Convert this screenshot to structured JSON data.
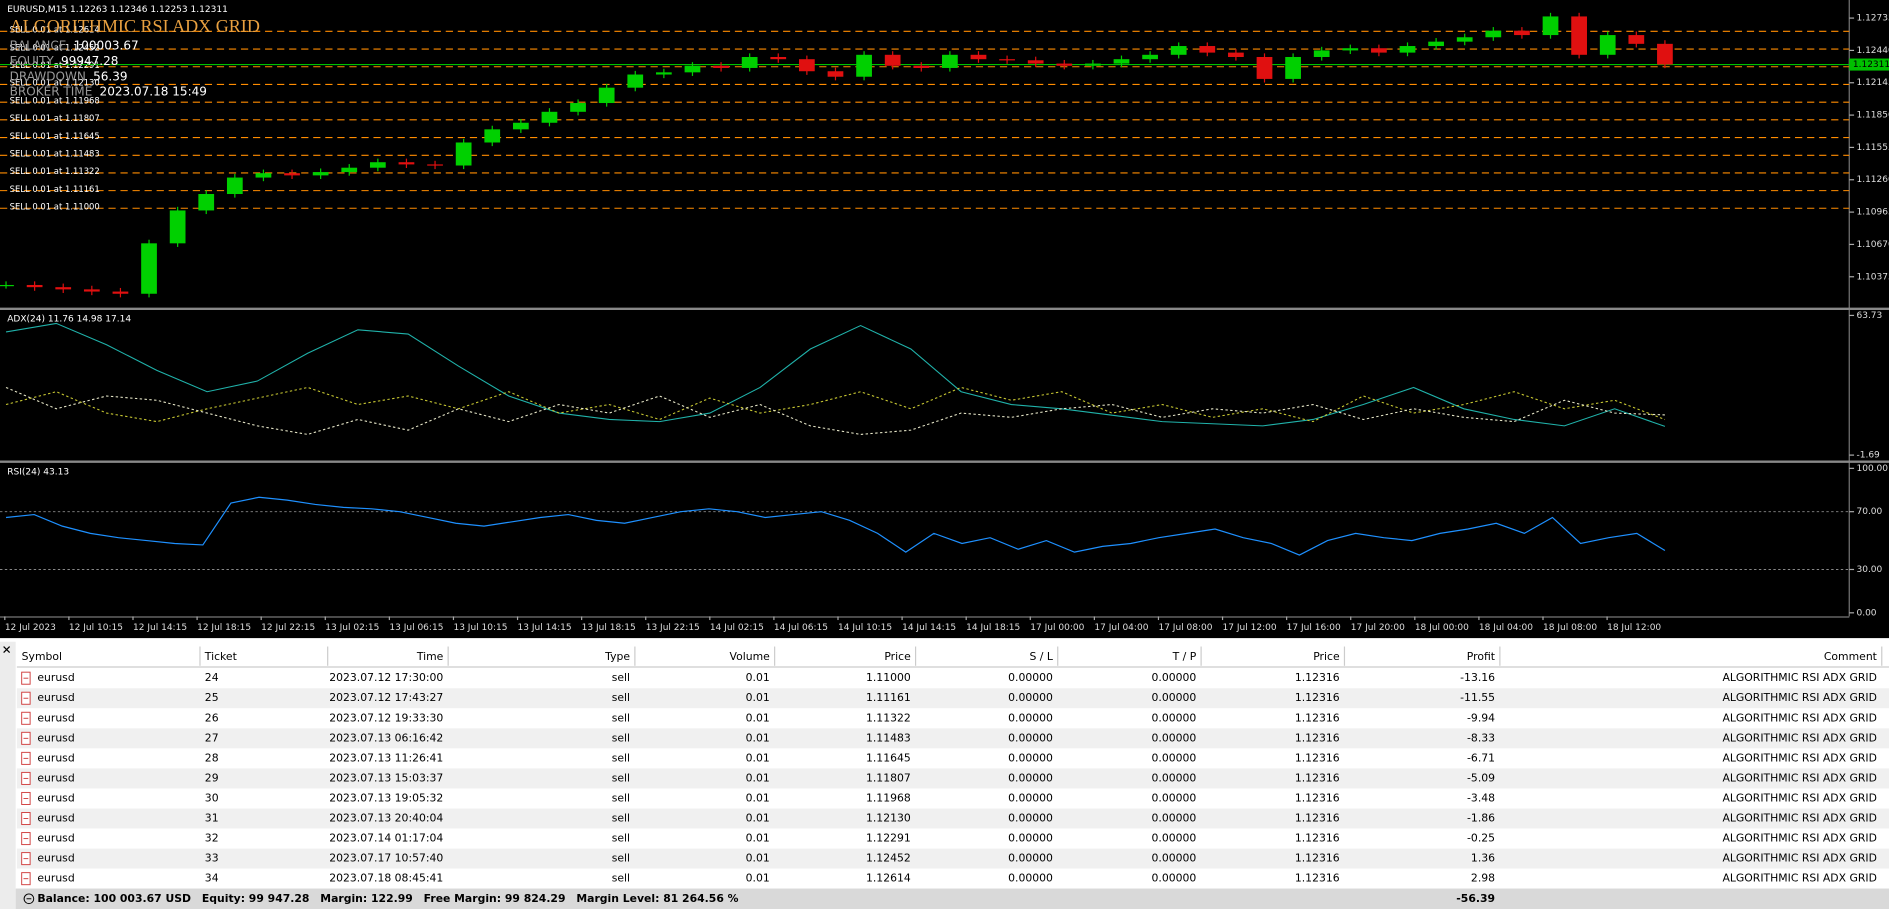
{
  "chart": {
    "header": "EURUSD,M15  1.12263 1.12346 1.12253 1.12311",
    "title": "ALGORITHMIC RSI ADX GRID",
    "overlay": [
      {
        "label": "BALANCE",
        "value": "100003.67"
      },
      {
        "label": "EQUITY",
        "value": "99947.28"
      },
      {
        "label": "DRAWDOWN",
        "value": "56.39"
      },
      {
        "label": "BROKER TIME",
        "value": "2023.07.18 15:49"
      }
    ],
    "price": {
      "ylim": [
        1.10099,
        1.12878
      ],
      "yticks": [
        1.12735,
        {
          "value": 1.1244,
          "label": "1.12440"
        },
        1.12145,
        {
          "value": 1.1185,
          "label": "1.11850"
        },
        1.11555,
        {
          "value": 1.1126,
          "label": "1.11260"
        },
        1.10965,
        {
          "value": 1.1067,
          "label": "1.10670"
        },
        1.10375
      ],
      "current": 1.12311,
      "up_color": "#00d000",
      "down_color": "#e01010",
      "values": [
        1.103,
        1.1028,
        1.1026,
        1.1024,
        1.1022,
        1.1068,
        1.1098,
        1.1113,
        1.1128,
        1.1132,
        1.113,
        1.1133,
        1.1137,
        1.1142,
        1.114,
        1.1139,
        1.116,
        1.1172,
        1.1178,
        1.1188,
        1.1196,
        1.121,
        1.1222,
        1.1224,
        1.123,
        1.1228,
        1.1238,
        1.1236,
        1.1225,
        1.122,
        1.124,
        1.123,
        1.1228,
        1.124,
        1.1236,
        1.1235,
        1.1232,
        1.123,
        1.1232,
        1.1236,
        1.124,
        1.1248,
        1.1242,
        1.1238,
        1.1218,
        1.1238,
        1.1244,
        1.1246,
        1.1242,
        1.1248,
        1.1252,
        1.1256,
        1.1262,
        1.1258,
        1.1275,
        1.124,
        1.1258,
        1.125,
        1.12311
      ]
    },
    "sell_orders": [
      {
        "text": "SELL 0.01 at 1.11000",
        "price": 1.11
      },
      {
        "text": "SELL 0.01 at 1.11161",
        "price": 1.11161
      },
      {
        "text": "SELL 0.01 at 1.11322",
        "price": 1.11322
      },
      {
        "text": "SELL 0.01 at 1.11483",
        "price": 1.11483
      },
      {
        "text": "SELL 0.01 at 1.11645",
        "price": 1.11645
      },
      {
        "text": "SELL 0.01 at 1.11807",
        "price": 1.11807
      },
      {
        "text": "SELL 0.01 at 1.11968",
        "price": 1.11968
      },
      {
        "text": "SELL 0.01 at 1.12130",
        "price": 1.1213
      },
      {
        "text": "SELL 0.01 at 1.12291",
        "price": 1.12291
      },
      {
        "text": "SELL 0.01 at 1.12452",
        "price": 1.12452
      },
      {
        "text": "SELL 0.01 at 1.12614",
        "price": 1.12614
      }
    ],
    "adx": {
      "label": "ADX(24) 11.76 14.98 17.14",
      "ylim": [
        -1.69,
        63.73
      ],
      "yticks": [
        63.73,
        -1.69
      ],
      "series": [
        {
          "color": "#20b2aa",
          "values": [
            56,
            60,
            50,
            38,
            28,
            33,
            46,
            57,
            55,
            40,
            26,
            18,
            15,
            14,
            18,
            30,
            48,
            59,
            48,
            28,
            22,
            20,
            17,
            14,
            13,
            12,
            15,
            22,
            30,
            20,
            15,
            12,
            20,
            11.76
          ]
        },
        {
          "color": "#c8c832",
          "values": [
            22,
            28,
            18,
            14,
            20,
            25,
            30,
            22,
            26,
            20,
            28,
            18,
            22,
            15,
            25,
            18,
            22,
            28,
            20,
            30,
            24,
            28,
            18,
            22,
            16,
            20,
            14,
            26,
            18,
            22,
            28,
            20,
            24,
            14.98
          ]
        },
        {
          "color": "#e6e6c8",
          "values": [
            30,
            20,
            26,
            24,
            18,
            12,
            8,
            15,
            10,
            20,
            14,
            22,
            18,
            26,
            16,
            22,
            12,
            8,
            10,
            18,
            16,
            20,
            22,
            16,
            20,
            18,
            22,
            15,
            20,
            16,
            14,
            24,
            18,
            17.14
          ]
        }
      ]
    },
    "rsi": {
      "label": "RSI(24) 43.13",
      "ylim": [
        0,
        100
      ],
      "yticks": [
        {
          "value": 100,
          "label": "100.00"
        },
        {
          "value": 70,
          "label": "70.00"
        },
        {
          "value": 30,
          "label": "30.00"
        },
        {
          "value": 0,
          "label": "0.00"
        }
      ],
      "levels": [
        70,
        30
      ],
      "color": "#1e90ff",
      "values": [
        66,
        68,
        60,
        55,
        52,
        50,
        48,
        47,
        76,
        80,
        78,
        75,
        73,
        72,
        70,
        66,
        62,
        60,
        63,
        66,
        68,
        64,
        62,
        66,
        70,
        72,
        70,
        66,
        68,
        70,
        64,
        55,
        42,
        55,
        48,
        52,
        44,
        50,
        42,
        46,
        48,
        52,
        55,
        58,
        52,
        48,
        40,
        50,
        55,
        52,
        50,
        55,
        58,
        62,
        55,
        66,
        48,
        52,
        55,
        43.13
      ]
    },
    "time_labels": [
      "12 Jul 2023",
      "12 Jul 10:15",
      "12 Jul 14:15",
      "12 Jul 18:15",
      "12 Jul 22:15",
      "13 Jul 02:15",
      "13 Jul 06:15",
      "13 Jul 10:15",
      "13 Jul 14:15",
      "13 Jul 18:15",
      "13 Jul 22:15",
      "14 Jul 02:15",
      "14 Jul 06:15",
      "14 Jul 10:15",
      "14 Jul 14:15",
      "14 Jul 18:15",
      "17 Jul 00:00",
      "17 Jul 04:00",
      "17 Jul 08:00",
      "17 Jul 12:00",
      "17 Jul 16:00",
      "17 Jul 20:00",
      "18 Jul 00:00",
      "18 Jul 04:00",
      "18 Jul 08:00",
      "18 Jul 12:00"
    ]
  },
  "table": {
    "columns": [
      "Symbol",
      "Ticket",
      "Time",
      "Type",
      "Volume",
      "Price",
      "S / L",
      "T / P",
      "Price",
      "Profit",
      "Comment"
    ],
    "rows": [
      [
        "eurusd",
        "24",
        "2023.07.12 17:30:00",
        "sell",
        "0.01",
        "1.11000",
        "0.00000",
        "0.00000",
        "1.12316",
        "-13.16",
        "ALGORITHMIC RSI ADX GRID"
      ],
      [
        "eurusd",
        "25",
        "2023.07.12 17:43:27",
        "sell",
        "0.01",
        "1.11161",
        "0.00000",
        "0.00000",
        "1.12316",
        "-11.55",
        "ALGORITHMIC RSI ADX GRID"
      ],
      [
        "eurusd",
        "26",
        "2023.07.12 19:33:30",
        "sell",
        "0.01",
        "1.11322",
        "0.00000",
        "0.00000",
        "1.12316",
        "-9.94",
        "ALGORITHMIC RSI ADX GRID"
      ],
      [
        "eurusd",
        "27",
        "2023.07.13 06:16:42",
        "sell",
        "0.01",
        "1.11483",
        "0.00000",
        "0.00000",
        "1.12316",
        "-8.33",
        "ALGORITHMIC RSI ADX GRID"
      ],
      [
        "eurusd",
        "28",
        "2023.07.13 11:26:41",
        "sell",
        "0.01",
        "1.11645",
        "0.00000",
        "0.00000",
        "1.12316",
        "-6.71",
        "ALGORITHMIC RSI ADX GRID"
      ],
      [
        "eurusd",
        "29",
        "2023.07.13 15:03:37",
        "sell",
        "0.01",
        "1.11807",
        "0.00000",
        "0.00000",
        "1.12316",
        "-5.09",
        "ALGORITHMIC RSI ADX GRID"
      ],
      [
        "eurusd",
        "30",
        "2023.07.13 19:05:32",
        "sell",
        "0.01",
        "1.11968",
        "0.00000",
        "0.00000",
        "1.12316",
        "-3.48",
        "ALGORITHMIC RSI ADX GRID"
      ],
      [
        "eurusd",
        "31",
        "2023.07.13 20:40:04",
        "sell",
        "0.01",
        "1.12130",
        "0.00000",
        "0.00000",
        "1.12316",
        "-1.86",
        "ALGORITHMIC RSI ADX GRID"
      ],
      [
        "eurusd",
        "32",
        "2023.07.14 01:17:04",
        "sell",
        "0.01",
        "1.12291",
        "0.00000",
        "0.00000",
        "1.12316",
        "-0.25",
        "ALGORITHMIC RSI ADX GRID"
      ],
      [
        "eurusd",
        "33",
        "2023.07.17 10:57:40",
        "sell",
        "0.01",
        "1.12452",
        "0.00000",
        "0.00000",
        "1.12316",
        "1.36",
        "ALGORITHMIC RSI ADX GRID"
      ],
      [
        "eurusd",
        "34",
        "2023.07.18 08:45:41",
        "sell",
        "0.01",
        "1.12614",
        "0.00000",
        "0.00000",
        "1.12316",
        "2.98",
        "ALGORITHMIC RSI ADX GRID"
      ]
    ],
    "footer": [
      "Balance: 100 003.67 USD",
      "Equity: 99 947.28",
      "Margin: 122.99",
      "Free Margin: 99 824.29",
      "Margin Level: 81 264.56 %"
    ],
    "total_profit": "-56.39"
  }
}
